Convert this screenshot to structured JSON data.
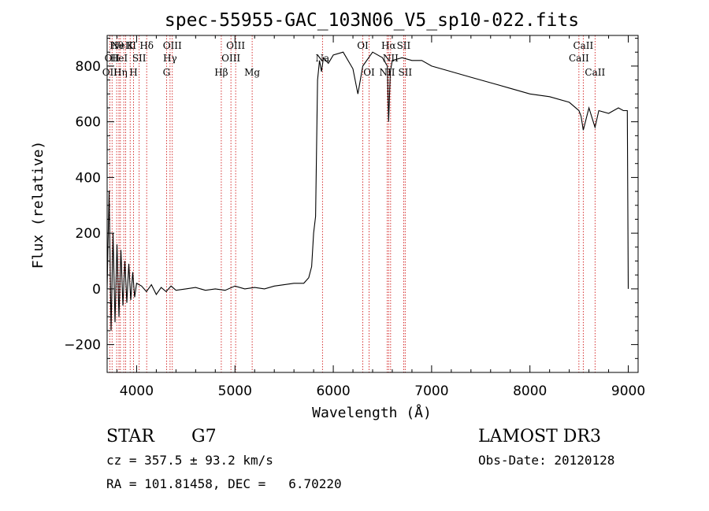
{
  "chart_data": {
    "type": "line",
    "title": "spec-55955-GAC_103N06_V5_sp10-022.fits",
    "xlabel": "Wavelength (Å)",
    "ylabel": "Flux (relative)",
    "xlim": [
      3700,
      9100
    ],
    "ylim": [
      -300,
      910
    ],
    "x_ticks": [
      4000,
      5000,
      6000,
      7000,
      8000,
      9000
    ],
    "x_tick_labels": [
      "4000",
      "5000",
      "6000",
      "7000",
      "8000",
      "9000"
    ],
    "y_ticks": [
      -200,
      0,
      200,
      400,
      600,
      800
    ],
    "y_tick_labels": [
      "−200",
      "0",
      "200",
      "400",
      "600",
      "800"
    ],
    "grid": false,
    "legend": "none",
    "line_color": "#000000",
    "marker_color": "#cc0000",
    "series": [
      {
        "name": "flux",
        "x": [
          3700,
          3720,
          3740,
          3760,
          3780,
          3800,
          3820,
          3840,
          3860,
          3880,
          3900,
          3920,
          3940,
          3960,
          3980,
          4000,
          4050,
          4100,
          4150,
          4200,
          4250,
          4300,
          4350,
          4400,
          4500,
          4600,
          4700,
          4800,
          4900,
          5000,
          5100,
          5200,
          5300,
          5400,
          5500,
          5600,
          5700,
          5750,
          5780,
          5800,
          5820,
          5840,
          5860,
          5880,
          5900,
          5950,
          6000,
          6100,
          6200,
          6250,
          6300,
          6400,
          6500,
          6550,
          6563,
          6580,
          6600,
          6700,
          6800,
          6900,
          7000,
          7200,
          7400,
          7600,
          7800,
          8000,
          8200,
          8400,
          8498,
          8520,
          8542,
          8600,
          8662,
          8700,
          8800,
          8900,
          8950,
          8990,
          9000
        ],
        "y": [
          0,
          350,
          -150,
          200,
          -120,
          160,
          -100,
          140,
          -60,
          100,
          -50,
          90,
          -40,
          60,
          -30,
          20,
          10,
          -10,
          15,
          -20,
          5,
          -10,
          10,
          -5,
          0,
          5,
          -5,
          0,
          -5,
          10,
          0,
          5,
          0,
          10,
          15,
          20,
          20,
          40,
          80,
          200,
          260,
          750,
          820,
          780,
          830,
          810,
          840,
          850,
          790,
          700,
          800,
          850,
          830,
          800,
          600,
          780,
          820,
          830,
          820,
          820,
          800,
          780,
          760,
          740,
          720,
          700,
          690,
          670,
          640,
          620,
          570,
          650,
          580,
          640,
          630,
          650,
          640,
          640,
          0
        ]
      }
    ],
    "spectral_lines": [
      {
        "wl": 3727,
        "label": "OII",
        "row": 3
      },
      {
        "wl": 3750,
        "label": "OII",
        "row": 2
      },
      {
        "wl": 3797,
        "label": "Hθ",
        "row": 1
      },
      {
        "wl": 3820,
        "label": "HeI",
        "row": 2
      },
      {
        "wl": 3835,
        "label": "Hη",
        "row": 3
      },
      {
        "wl": 3869,
        "label": "NeIII",
        "row": 0
      },
      {
        "wl": 3889,
        "label": "",
        "row": 0
      },
      {
        "wl": 3934,
        "label": "K",
        "row": 1
      },
      {
        "wl": 3968,
        "label": "H",
        "row": 3
      },
      {
        "wl": 4026,
        "label": "SII",
        "row": 2
      },
      {
        "wl": 4102,
        "label": "Hδ",
        "row": 1
      },
      {
        "wl": 4304,
        "label": "G",
        "row": 3
      },
      {
        "wl": 4340,
        "label": "Hγ",
        "row": 2
      },
      {
        "wl": 4363,
        "label": "OIII",
        "row": 1
      },
      {
        "wl": 4861,
        "label": "Hβ",
        "row": 3
      },
      {
        "wl": 4959,
        "label": "OIII",
        "row": 2
      },
      {
        "wl": 5007,
        "label": "OIII",
        "row": 1
      },
      {
        "wl": 5175,
        "label": "Mg",
        "row": 3
      },
      {
        "wl": 5890,
        "label": "Na",
        "row": 2
      },
      {
        "wl": 6300,
        "label": "OI",
        "row": 1
      },
      {
        "wl": 6364,
        "label": "OI",
        "row": 3
      },
      {
        "wl": 6548,
        "label": "NII",
        "row": 3
      },
      {
        "wl": 6563,
        "label": "Hα",
        "row": 1
      },
      {
        "wl": 6583,
        "label": "NII",
        "row": 2
      },
      {
        "wl": 6716,
        "label": "SII",
        "row": 1
      },
      {
        "wl": 6731,
        "label": "SII",
        "row": 3
      },
      {
        "wl": 8498,
        "label": "CaII",
        "row": 2
      },
      {
        "wl": 8542,
        "label": "CaII",
        "row": 1
      },
      {
        "wl": 8662,
        "label": "CaII",
        "row": 3
      }
    ]
  },
  "footer": {
    "class_label": "STAR",
    "subclass": "G7",
    "survey": "LAMOST DR3",
    "cz": "cz = 357.5 ± 93.2 km/s",
    "obs_date": "Obs-Date: 20120128",
    "coords": "RA = 101.81458, DEC =   6.70220"
  }
}
